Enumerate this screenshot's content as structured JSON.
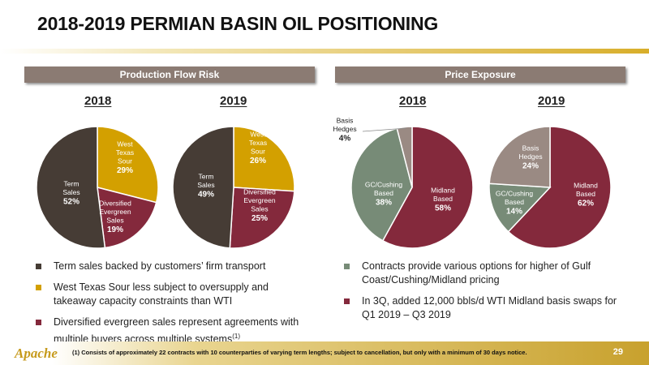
{
  "title": "2018-2019 PERMIAN BASIN OIL POSITIONING",
  "left_section": {
    "header": "Production Flow Risk",
    "year_a": "2018",
    "year_b": "2019",
    "bullets": [
      "Term sales backed by customers’ firm transport",
      "West Texas Sour less subject to oversupply and takeaway capacity constraints than WTI",
      "Diversified evergreen sales represent agreements with multiple buyers across multiple systems"
    ],
    "footnote_marker": "(1)"
  },
  "right_section": {
    "header": "Price Exposure",
    "year_a": "2018",
    "year_b": "2019",
    "bullets": [
      "Contracts provide various options for higher of Gulf Coast/Cushing/Midland pricing",
      "In 3Q, added 12,000 bbls/d WTI Midland basis swaps for Q1 2019 – Q3 2019"
    ]
  },
  "colors": {
    "term": "#463c35",
    "wts": "#d3a000",
    "diversified": "#84293c",
    "midland": "#84293c",
    "gc": "#778b77",
    "basis": "#9a8a83",
    "bar": "#8b7b73",
    "bullet_left": [
      "#463c35",
      "#d3a000",
      "#84293c"
    ],
    "bullet_right": [
      "#778b77",
      "#84293c"
    ]
  },
  "chart_data": [
    {
      "type": "pie",
      "year": "2018",
      "group": "Production Flow Risk",
      "slices": [
        {
          "label": "West Texas Sour",
          "value": 29,
          "pct": "29%",
          "color": "#d3a000"
        },
        {
          "label": "Diversified Evergreen Sales",
          "value": 19,
          "pct": "19%",
          "color": "#84293c"
        },
        {
          "label": "Term Sales",
          "value": 52,
          "pct": "52%",
          "color": "#463c35"
        }
      ]
    },
    {
      "type": "pie",
      "year": "2019",
      "group": "Production Flow Risk",
      "slices": [
        {
          "label": "West Texas Sour",
          "value": 26,
          "pct": "26%",
          "color": "#d3a000"
        },
        {
          "label": "Diversified Evergreen Sales",
          "value": 25,
          "pct": "25%",
          "color": "#84293c"
        },
        {
          "label": "Term Sales",
          "value": 49,
          "pct": "49%",
          "color": "#463c35"
        }
      ]
    },
    {
      "type": "pie",
      "year": "2018",
      "group": "Price Exposure",
      "slices": [
        {
          "label": "Midland Based",
          "value": 58,
          "pct": "58%",
          "color": "#84293c"
        },
        {
          "label": "GC/Cushing Based",
          "value": 38,
          "pct": "38%",
          "color": "#778b77"
        },
        {
          "label": "Basis Hedges",
          "value": 4,
          "pct": "4%",
          "color": "#9a8a83"
        }
      ]
    },
    {
      "type": "pie",
      "year": "2019",
      "group": "Price Exposure",
      "slices": [
        {
          "label": "Midland Based",
          "value": 62,
          "pct": "62%",
          "color": "#84293c"
        },
        {
          "label": "GC/Cushing Based",
          "value": 14,
          "pct": "14%",
          "color": "#778b77"
        },
        {
          "label": "Basis Hedges",
          "value": 24,
          "pct": "24%",
          "color": "#9a8a83"
        }
      ]
    }
  ],
  "footer": {
    "logo": "Apache",
    "footnote": "(1) Consists of approximately 22 contracts with 10 counterparties of varying term lengths; subject to cancellation, but only with a minimum of 30 days notice.",
    "page_number": "29"
  }
}
